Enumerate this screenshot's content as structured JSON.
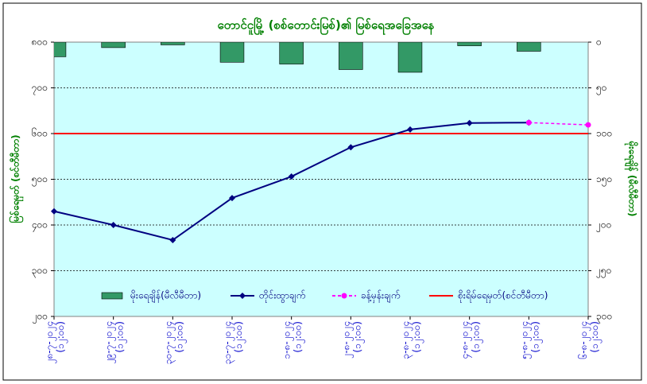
{
  "chart_data": {
    "type": "line",
    "title": "တောင်ငူမြို့ (စစ်တောင်းမြစ်)၏ မြစ်ရေအခြေအနေ",
    "y_label": "မြစ်ရေမှတ် (စင်တီမီတာ)",
    "y2_label": "မိုးရေချိန် (မီလီမီတာ)",
    "categories": [
      "၂၈-၇-၂၀၂၄ (၁၂:၀၀)",
      "၂၉-၇-၂၀၂၄ (၁၂:၀၀)",
      "၃၀-၇-၂၀၂၄ (၁၂:၀၀)",
      "၃၁-၇-၂၀၂၄ (၁၂:၀၀)",
      "၁-၈-၂၀၂၄ (၁၂:၀၀)",
      "၂-၈-၂၀၂၄ (၁၂:၀၀)",
      "၃-၈-၂၀၂၄ (၁၂:၀၀)",
      "၄-၈-၂၀၂၄ (၁၂:၀၀)",
      "၅-၈-၂၀၂၄ (၁၂:၀၀)",
      "၆-၈-၂၀၂၄ (၁၂:၀၀)"
    ],
    "series": [
      {
        "name": "မိုးရေချိန်(မီလီမီတာ)",
        "type": "bar",
        "axis": "y2",
        "color": "#339966",
        "values": [
          16,
          6,
          3,
          22,
          24,
          30,
          33,
          4,
          10,
          0
        ]
      },
      {
        "name": "တိုင်းထွာချက်",
        "type": "line",
        "color": "#000080",
        "values": [
          430,
          400,
          367,
          459,
          506,
          570,
          609,
          623,
          624,
          null
        ]
      },
      {
        "name": "ခန့်မှန်းချက်",
        "type": "line",
        "dashed": true,
        "color": "#ff00ff",
        "values": [
          null,
          null,
          null,
          null,
          null,
          null,
          null,
          null,
          624,
          619
        ]
      }
    ],
    "reference_lines": [
      {
        "name": "စိုးရိမ်ရေမှတ်(စင်တီမီတာ)",
        "value": 600,
        "color": "#ff0000"
      }
    ],
    "ylim": [
      200,
      800
    ],
    "yticks": [
      {
        "value": 200,
        "label": "၂၀၀"
      },
      {
        "value": 300,
        "label": "၃၀၀"
      },
      {
        "value": 400,
        "label": "၄၀၀"
      },
      {
        "value": 500,
        "label": "၅၀၀"
      },
      {
        "value": 600,
        "label": "၆၀၀"
      },
      {
        "value": 700,
        "label": "၇၀၀"
      },
      {
        "value": 800,
        "label": "၈၀၀"
      }
    ],
    "y2lim": [
      0,
      300
    ],
    "y2_inverted": true,
    "y2ticks": [
      {
        "value": 0,
        "label": "၀"
      },
      {
        "value": 50,
        "label": "၅၀"
      },
      {
        "value": 100,
        "label": "၁၀၀"
      },
      {
        "value": 150,
        "label": "၁၅၀"
      },
      {
        "value": 200,
        "label": "၂၀၀"
      },
      {
        "value": 250,
        "label": "၂၅၀"
      },
      {
        "value": 300,
        "label": "၃၀၀"
      }
    ],
    "grid": true
  }
}
